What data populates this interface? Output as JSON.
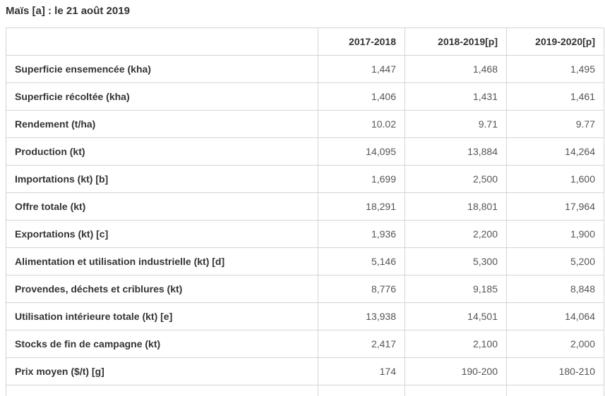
{
  "page_title": "Maïs [a] : le 21 août 2019",
  "table": {
    "columns": [
      "2017-2018",
      "2018-2019[p]",
      "2019-2020[p]"
    ],
    "rows": [
      {
        "label": "Superficie ensemencée (kha)",
        "values": [
          "1,447",
          "1,468",
          "1,495"
        ]
      },
      {
        "label": "Superficie récoltée (kha)",
        "values": [
          "1,406",
          "1,431",
          "1,461"
        ]
      },
      {
        "label": "Rendement (t/ha)",
        "values": [
          "10.02",
          "9.71",
          "9.77"
        ]
      },
      {
        "label": "Production (kt)",
        "values": [
          "14,095",
          "13,884",
          "14,264"
        ]
      },
      {
        "label": "Importations (kt) [b]",
        "values": [
          "1,699",
          "2,500",
          "1,600"
        ]
      },
      {
        "label": "Offre totale (kt)",
        "values": [
          "18,291",
          "18,801",
          "17,964"
        ]
      },
      {
        "label": "Exportations (kt) [c]",
        "values": [
          "1,936",
          "2,200",
          "1,900"
        ]
      },
      {
        "label": "Alimentation et utilisation industrielle (kt) [d]",
        "values": [
          "5,146",
          "5,300",
          "5,200"
        ]
      },
      {
        "label": "Provendes, déchets et criblures (kt)",
        "values": [
          "8,776",
          "9,185",
          "8,848"
        ]
      },
      {
        "label": "Utilisation intérieure totale (kt) [e]",
        "values": [
          "13,938",
          "14,501",
          "14,064"
        ]
      },
      {
        "label": "Stocks de fin de campagne (kt)",
        "values": [
          "2,417",
          "2,100",
          "2,000"
        ]
      },
      {
        "label": "Prix moyen ($/t) [g]",
        "values": [
          "174",
          "190-200",
          "180-210"
        ]
      }
    ]
  },
  "colors": {
    "background": "#ffffff",
    "border": "#d4d4d4",
    "title_text": "#333333",
    "label_text": "#333333",
    "value_text": "#555555"
  }
}
